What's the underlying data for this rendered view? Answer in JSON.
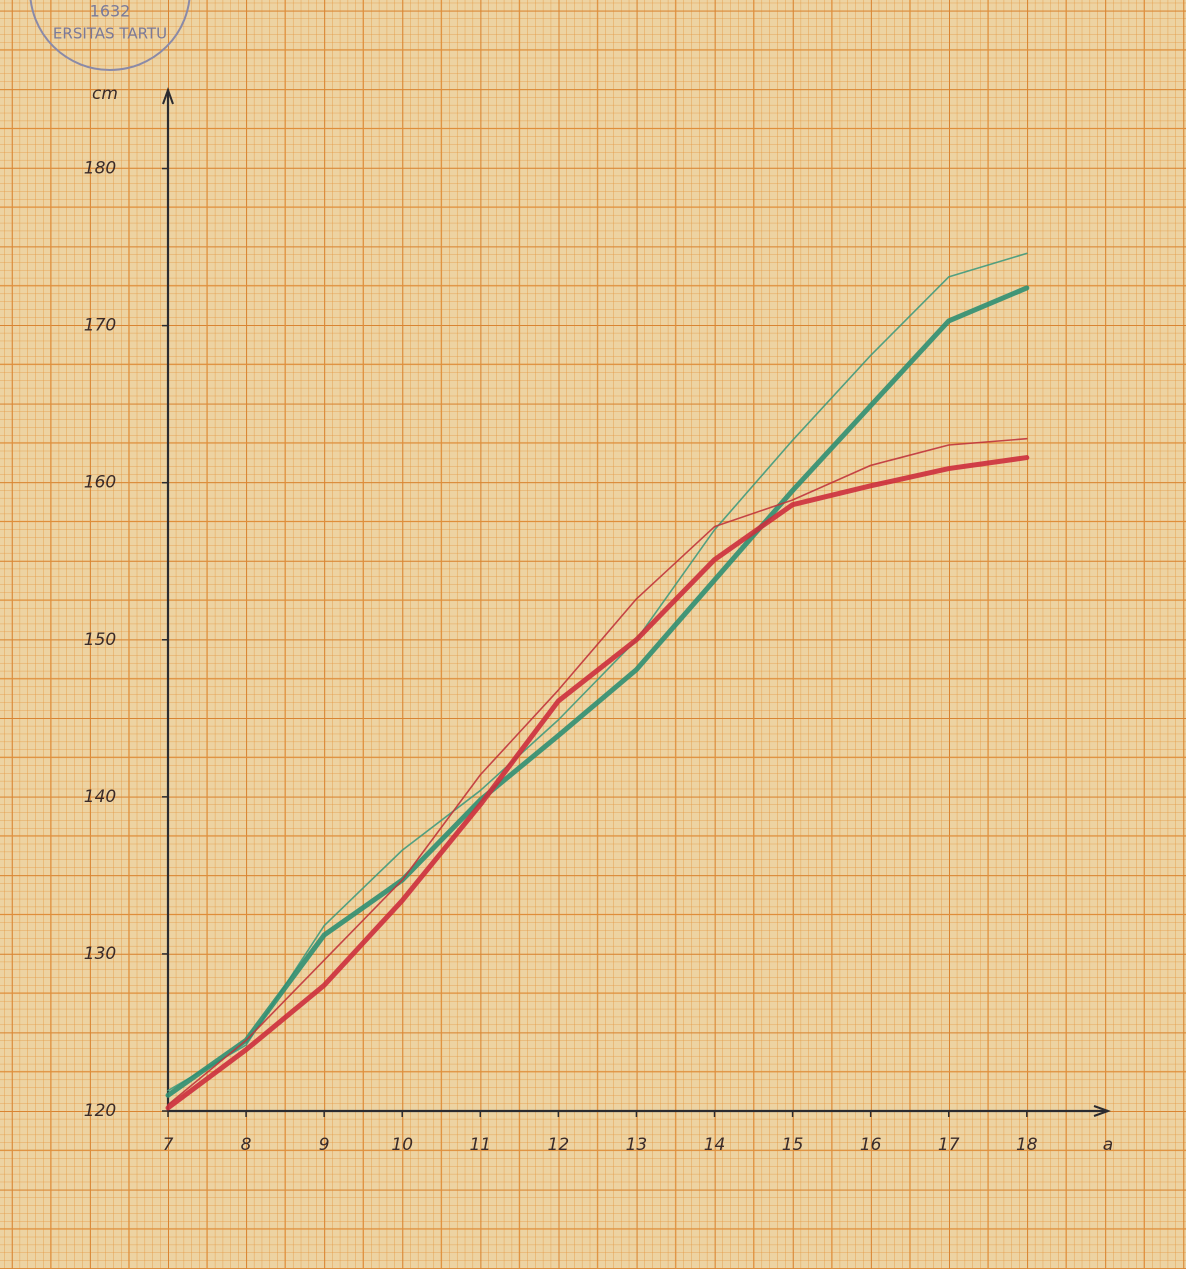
{
  "stamp": {
    "year": "1632",
    "text": "ERSITAS TARTU"
  },
  "chart_data": {
    "type": "line",
    "xlabel": "a",
    "ylabel": "cm",
    "x": [
      7,
      8,
      9,
      10,
      11,
      12,
      13,
      14,
      15,
      16,
      17,
      18
    ],
    "xlim": [
      7,
      19.04
    ],
    "ylim": [
      120,
      185
    ],
    "xticks": [
      7,
      8,
      9,
      10,
      11,
      12,
      13,
      14,
      15,
      16,
      17,
      18
    ],
    "yticks": [
      120,
      130,
      140,
      150,
      160,
      170,
      180
    ],
    "series": [
      {
        "color": "#3f9a7e",
        "width": 1.6,
        "values": [
          121.3,
          124.2,
          131.8,
          136.6,
          140.4,
          144.9,
          150,
          157,
          162.7,
          168.1,
          173.1,
          174.6
        ]
      },
      {
        "color": "#2f8f73",
        "width": 5,
        "values": [
          121,
          124.5,
          131.2,
          134.7,
          139.8,
          143.9,
          148.1,
          153.8,
          159.5,
          164.9,
          170.3,
          172.4
        ]
      },
      {
        "color": "#c0343c",
        "width": 1.6,
        "values": [
          120.4,
          124.5,
          129.6,
          134.7,
          141.4,
          146.8,
          152.6,
          157.2,
          158.9,
          161.1,
          162.4,
          162.8
        ]
      },
      {
        "color": "#cc2f3d",
        "width": 5,
        "values": [
          120.2,
          123.9,
          128,
          133.4,
          139.5,
          146.1,
          150,
          155.1,
          158.6,
          159.8,
          160.9,
          161.6
        ]
      }
    ]
  }
}
